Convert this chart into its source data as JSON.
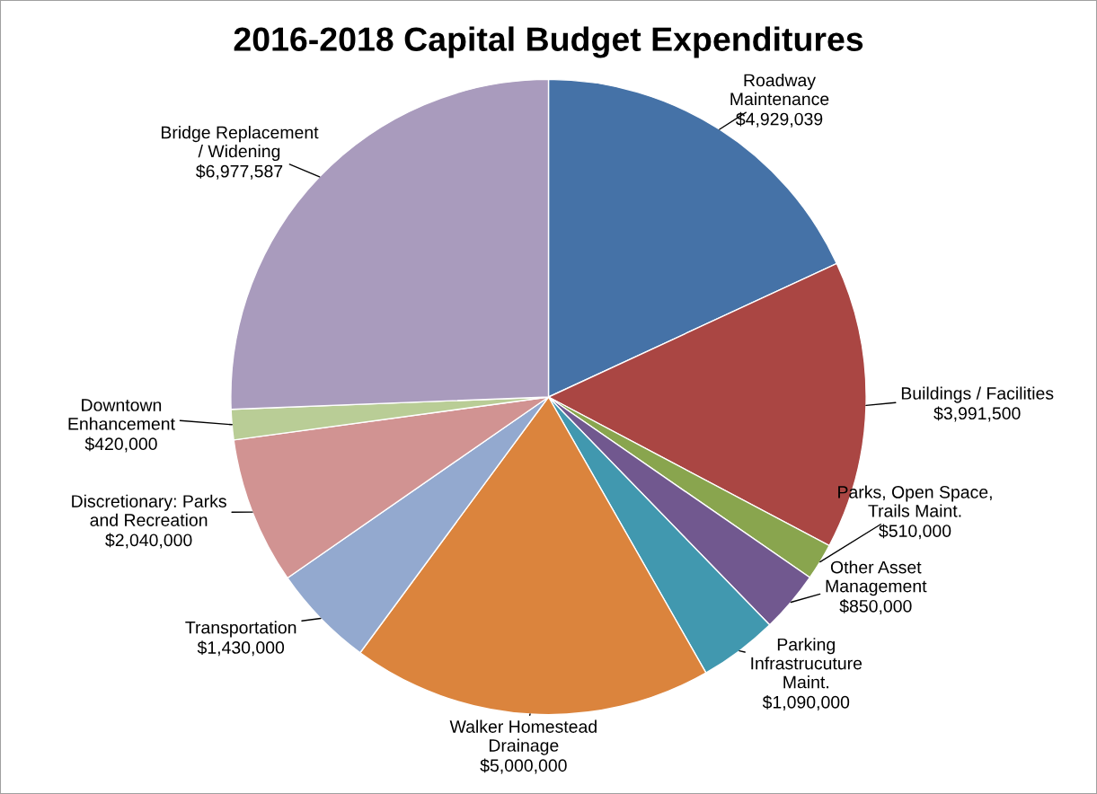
{
  "chart_data": {
    "type": "pie",
    "title": "2016-2018 Capital Budget Expenditures",
    "categories": [
      "Roadway\nMaintenance",
      "Buildings / Facilities",
      "Parks, Open Space,\nTrails Maint.",
      "Other Asset\nManagement",
      "Parking\nInfrastrucuture\nMaint.",
      "Walker Homestead\nDrainage",
      "Transportation",
      "Discretionary: Parks\nand Recreation",
      "Downtown\nEnhancement",
      "Bridge Replacement\n/ Widening"
    ],
    "values": [
      4929039,
      3991500,
      510000,
      850000,
      1090000,
      5000000,
      1430000,
      2040000,
      420000,
      6977587
    ],
    "value_labels": [
      "$4,929,039",
      "$3,991,500",
      "$510,000",
      "$850,000",
      "$1,090,000",
      "$5,000,000",
      "$1,430,000",
      "$2,040,000",
      "$420,000",
      "$6,977,587"
    ],
    "colors": [
      "#4572a7",
      "#aa4643",
      "#89a54e",
      "#71588f",
      "#4198af",
      "#db843d",
      "#93a9cf",
      "#d19392",
      "#b9cd96",
      "#a99bbd"
    ]
  }
}
